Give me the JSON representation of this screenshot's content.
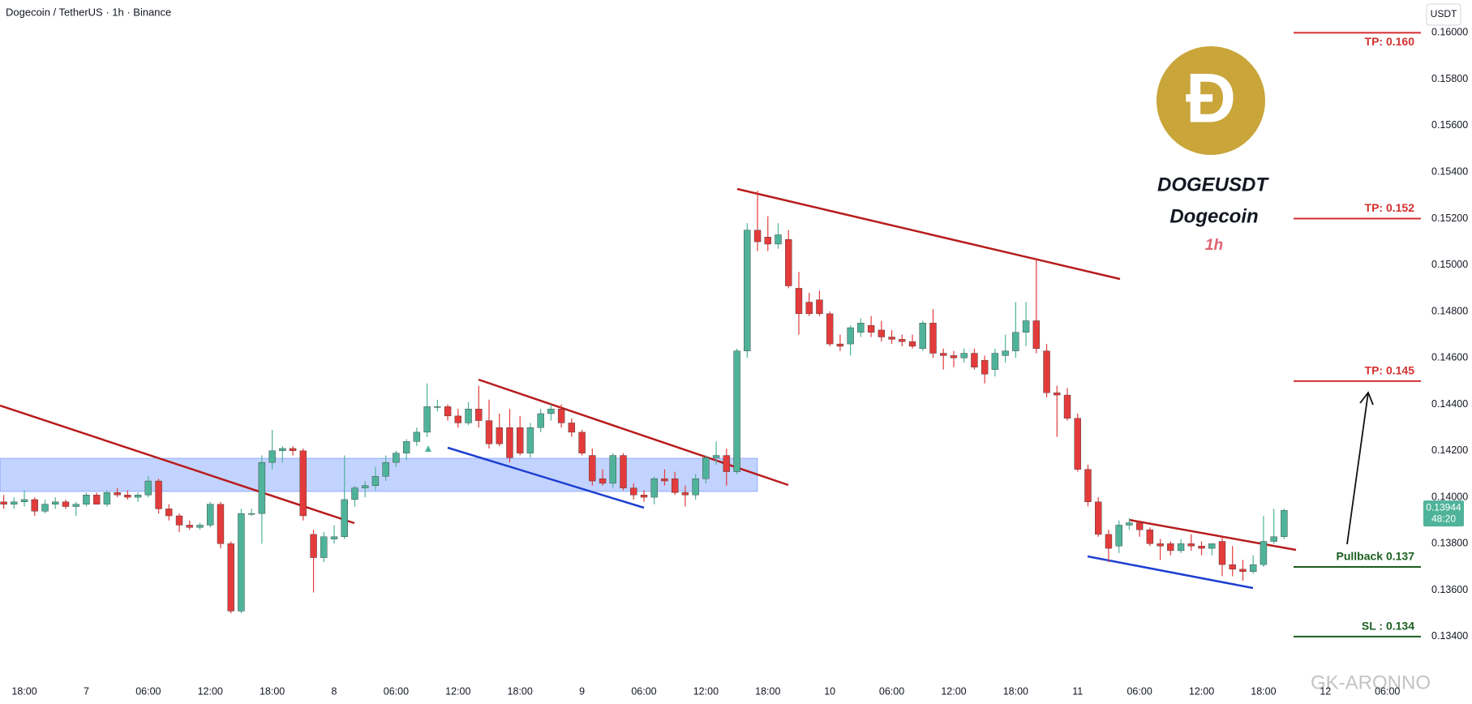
{
  "chart_data": {
    "type": "candlestick",
    "title": "Dogecoin / TetherUS · 1h · Binance",
    "currency": "USDT",
    "up_color": "#4fb39a",
    "down_color": "#e33b3b",
    "xlim": [
      -2.36,
      135.4
    ],
    "ylim": [
      0.13232,
      0.16141
    ],
    "yticks": [
      {
        "value": 0.134,
        "label": "0.13400"
      },
      {
        "value": 0.136,
        "label": "0.13600"
      },
      {
        "value": 0.138,
        "label": "0.13800"
      },
      {
        "value": 0.14,
        "label": "0.14000"
      },
      {
        "value": 0.142,
        "label": "0.14200"
      },
      {
        "value": 0.144,
        "label": "0.14400"
      },
      {
        "value": 0.146,
        "label": "0.14600"
      },
      {
        "value": 0.148,
        "label": "0.14800"
      },
      {
        "value": 0.15,
        "label": "0.15000"
      },
      {
        "value": 0.152,
        "label": "0.15200"
      },
      {
        "value": 0.154,
        "label": "0.15400"
      },
      {
        "value": 0.156,
        "label": "0.15600"
      },
      {
        "value": 0.158,
        "label": "0.15800"
      },
      {
        "value": 0.16,
        "label": "0.16000"
      }
    ],
    "xticks": [
      {
        "value": 0,
        "label": "18:00"
      },
      {
        "value": 6,
        "label": "7"
      },
      {
        "value": 12,
        "label": "06:00"
      },
      {
        "value": 18,
        "label": "12:00"
      },
      {
        "value": 24,
        "label": "18:00"
      },
      {
        "value": 30,
        "label": "8"
      },
      {
        "value": 36,
        "label": "06:00"
      },
      {
        "value": 42,
        "label": "12:00"
      },
      {
        "value": 48,
        "label": "18:00"
      },
      {
        "value": 54,
        "label": "9"
      },
      {
        "value": 60,
        "label": "06:00"
      },
      {
        "value": 66,
        "label": "12:00"
      },
      {
        "value": 72,
        "label": "18:00"
      },
      {
        "value": 78,
        "label": "10"
      },
      {
        "value": 84,
        "label": "06:00"
      },
      {
        "value": 90,
        "label": "12:00"
      },
      {
        "value": 96,
        "label": "18:00"
      },
      {
        "value": 102,
        "label": "11"
      },
      {
        "value": 108,
        "label": "06:00"
      },
      {
        "value": 114,
        "label": "12:00"
      },
      {
        "value": 120,
        "label": "18:00"
      },
      {
        "value": 126,
        "label": "12"
      },
      {
        "value": 132,
        "label": "06:00"
      }
    ],
    "x": [
      -2,
      -1,
      0,
      1,
      2,
      3,
      4,
      5,
      6,
      7,
      8,
      9,
      10,
      11,
      12,
      13,
      14,
      15,
      16,
      17,
      18,
      19,
      20,
      21,
      22,
      23,
      24,
      25,
      26,
      27,
      28,
      29,
      30,
      31,
      32,
      33,
      34,
      35,
      36,
      37,
      38,
      39,
      40,
      41,
      42,
      43,
      44,
      45,
      46,
      47,
      48,
      49,
      50,
      51,
      52,
      53,
      54,
      55,
      56,
      57,
      58,
      59,
      60,
      61,
      62,
      63,
      64,
      65,
      66,
      67,
      68,
      69,
      70,
      71,
      72,
      73,
      74,
      75,
      76,
      77,
      78,
      79,
      80,
      81,
      82,
      83,
      84,
      85,
      86,
      87,
      88,
      89,
      90,
      91,
      92,
      93,
      94,
      95,
      96,
      97,
      98,
      99,
      100,
      101,
      102,
      103,
      104,
      105,
      106,
      107,
      108,
      109,
      110,
      111,
      112,
      113,
      114,
      115,
      116,
      117,
      118,
      119,
      120,
      121,
      122
    ],
    "ohlc": [
      [
        0.1398,
        0.1401,
        0.1395,
        0.1397
      ],
      [
        0.1397,
        0.14,
        0.1395,
        0.1398
      ],
      [
        0.1398,
        0.1403,
        0.1396,
        0.1399
      ],
      [
        0.1399,
        0.14,
        0.1392,
        0.1394
      ],
      [
        0.1394,
        0.1399,
        0.1393,
        0.1397
      ],
      [
        0.1397,
        0.14,
        0.1395,
        0.1398
      ],
      [
        0.1398,
        0.1399,
        0.1395,
        0.1396
      ],
      [
        0.1396,
        0.1398,
        0.1392,
        0.1397
      ],
      [
        0.1397,
        0.1402,
        0.1396,
        0.1401
      ],
      [
        0.1401,
        0.1402,
        0.1397,
        0.1397
      ],
      [
        0.1397,
        0.1403,
        0.1396,
        0.1402
      ],
      [
        0.1402,
        0.1404,
        0.14,
        0.1401
      ],
      [
        0.1401,
        0.1403,
        0.1399,
        0.14
      ],
      [
        0.14,
        0.1402,
        0.1398,
        0.1401
      ],
      [
        0.1401,
        0.1409,
        0.14,
        0.1407
      ],
      [
        0.1407,
        0.1408,
        0.1393,
        0.1395
      ],
      [
        0.1395,
        0.1397,
        0.139,
        0.1392
      ],
      [
        0.1392,
        0.1393,
        0.1385,
        0.1388
      ],
      [
        0.1388,
        0.139,
        0.1386,
        0.1387
      ],
      [
        0.1387,
        0.1389,
        0.1386,
        0.1388
      ],
      [
        0.1388,
        0.1398,
        0.1387,
        0.1397
      ],
      [
        0.1397,
        0.1398,
        0.1378,
        0.138
      ],
      [
        0.138,
        0.1381,
        0.135,
        0.1351
      ],
      [
        0.1351,
        0.1395,
        0.135,
        0.1393
      ],
      [
        0.1393,
        0.1395,
        0.1392,
        0.1393
      ],
      [
        0.1393,
        0.1418,
        0.138,
        0.1415
      ],
      [
        0.1415,
        0.1429,
        0.1412,
        0.142
      ],
      [
        0.142,
        0.1422,
        0.1415,
        0.1421
      ],
      [
        0.1421,
        0.1422,
        0.1418,
        0.142
      ],
      [
        0.142,
        0.1421,
        0.139,
        0.1392
      ],
      [
        0.1384,
        0.1386,
        0.1359,
        0.1374
      ],
      [
        0.1374,
        0.1385,
        0.1372,
        0.1383
      ],
      [
        0.1382,
        0.1388,
        0.138,
        0.1383
      ],
      [
        0.1383,
        0.1418,
        0.1382,
        0.1399
      ],
      [
        0.1399,
        0.1405,
        0.1396,
        0.1404
      ],
      [
        0.1404,
        0.1407,
        0.14,
        0.1405
      ],
      [
        0.1405,
        0.1413,
        0.1403,
        0.1409
      ],
      [
        0.1409,
        0.1418,
        0.1407,
        0.1415
      ],
      [
        0.1415,
        0.142,
        0.1413,
        0.1419
      ],
      [
        0.1419,
        0.1425,
        0.1416,
        0.1424
      ],
      [
        0.1424,
        0.143,
        0.1422,
        0.1428
      ],
      [
        0.1428,
        0.1449,
        0.1426,
        0.1439
      ],
      [
        0.1439,
        0.1442,
        0.1437,
        0.1439
      ],
      [
        0.1439,
        0.144,
        0.1433,
        0.1435
      ],
      [
        0.1435,
        0.1438,
        0.143,
        0.1432
      ],
      [
        0.1432,
        0.1441,
        0.1431,
        0.1438
      ],
      [
        0.1438,
        0.1448,
        0.143,
        0.1433
      ],
      [
        0.1433,
        0.1442,
        0.1421,
        0.1423
      ],
      [
        0.143,
        0.1436,
        0.1422,
        0.1423
      ],
      [
        0.143,
        0.1438,
        0.1415,
        0.1417
      ],
      [
        0.143,
        0.1435,
        0.1418,
        0.1419
      ],
      [
        0.1419,
        0.1432,
        0.1417,
        0.143
      ],
      [
        0.143,
        0.1438,
        0.1428,
        0.1436
      ],
      [
        0.1436,
        0.144,
        0.1433,
        0.1438
      ],
      [
        0.1438,
        0.144,
        0.143,
        0.1432
      ],
      [
        0.1432,
        0.1434,
        0.1426,
        0.1428
      ],
      [
        0.1428,
        0.1429,
        0.1418,
        0.1419
      ],
      [
        0.1418,
        0.1421,
        0.1405,
        0.1407
      ],
      [
        0.1408,
        0.1412,
        0.1405,
        0.1406
      ],
      [
        0.1406,
        0.1419,
        0.1404,
        0.1418
      ],
      [
        0.1418,
        0.1419,
        0.1403,
        0.1404
      ],
      [
        0.1404,
        0.1406,
        0.1399,
        0.1401
      ],
      [
        0.1401,
        0.1403,
        0.1398,
        0.14
      ],
      [
        0.14,
        0.1409,
        0.1397,
        0.1408
      ],
      [
        0.1408,
        0.1412,
        0.1405,
        0.1407
      ],
      [
        0.1408,
        0.1411,
        0.1401,
        0.1402
      ],
      [
        0.1402,
        0.1405,
        0.1396,
        0.1401
      ],
      [
        0.1401,
        0.141,
        0.1399,
        0.1408
      ],
      [
        0.1408,
        0.1418,
        0.1406,
        0.1417
      ],
      [
        0.1417,
        0.1424,
        0.1414,
        0.1418
      ],
      [
        0.1418,
        0.1421,
        0.1405,
        0.1411
      ],
      [
        0.1411,
        0.1464,
        0.141,
        0.1463
      ],
      [
        0.1463,
        0.1518,
        0.146,
        0.1515
      ],
      [
        0.1515,
        0.1532,
        0.1506,
        0.151
      ],
      [
        0.1512,
        0.1521,
        0.1506,
        0.1509
      ],
      [
        0.1509,
        0.1518,
        0.1507,
        0.1513
      ],
      [
        0.1511,
        0.1515,
        0.149,
        0.1491
      ],
      [
        0.149,
        0.1497,
        0.147,
        0.1479
      ],
      [
        0.1484,
        0.1488,
        0.1478,
        0.1479
      ],
      [
        0.1485,
        0.1489,
        0.1478,
        0.1479
      ],
      [
        0.1479,
        0.148,
        0.1465,
        0.1466
      ],
      [
        0.1466,
        0.147,
        0.1463,
        0.1465
      ],
      [
        0.1466,
        0.1474,
        0.1461,
        0.1473
      ],
      [
        0.1471,
        0.1477,
        0.1469,
        0.1475
      ],
      [
        0.1474,
        0.1478,
        0.1469,
        0.1471
      ],
      [
        0.1472,
        0.1476,
        0.1467,
        0.1469
      ],
      [
        0.1469,
        0.1472,
        0.1466,
        0.1468
      ],
      [
        0.1468,
        0.147,
        0.1465,
        0.1467
      ],
      [
        0.1467,
        0.147,
        0.1464,
        0.1465
      ],
      [
        0.1464,
        0.1476,
        0.1463,
        0.1475
      ],
      [
        0.1475,
        0.1481,
        0.146,
        0.1462
      ],
      [
        0.1462,
        0.1464,
        0.1455,
        0.1461
      ],
      [
        0.1461,
        0.1463,
        0.1456,
        0.146
      ],
      [
        0.146,
        0.1464,
        0.1458,
        0.1462
      ],
      [
        0.1462,
        0.1464,
        0.1455,
        0.1456
      ],
      [
        0.1459,
        0.1461,
        0.1449,
        0.1453
      ],
      [
        0.1455,
        0.1464,
        0.1452,
        0.1462
      ],
      [
        0.1461,
        0.147,
        0.1458,
        0.1463
      ],
      [
        0.1463,
        0.1484,
        0.146,
        0.1471
      ],
      [
        0.1471,
        0.1484,
        0.1465,
        0.1476
      ],
      [
        0.1476,
        0.1503,
        0.1462,
        0.1464
      ],
      [
        0.1463,
        0.1466,
        0.1443,
        0.1445
      ],
      [
        0.1445,
        0.1448,
        0.1426,
        0.1444
      ],
      [
        0.1444,
        0.1447,
        0.1433,
        0.1434
      ],
      [
        0.1434,
        0.1436,
        0.1411,
        0.1412
      ],
      [
        0.1412,
        0.1414,
        0.1396,
        0.1398
      ],
      [
        0.1398,
        0.14,
        0.1383,
        0.1384
      ],
      [
        0.1384,
        0.1386,
        0.1372,
        0.1378
      ],
      [
        0.1379,
        0.139,
        0.1376,
        0.1388
      ],
      [
        0.1388,
        0.1391,
        0.1386,
        0.1389
      ],
      [
        0.1389,
        0.139,
        0.1383,
        0.1386
      ],
      [
        0.1386,
        0.1387,
        0.1379,
        0.138
      ],
      [
        0.138,
        0.1382,
        0.1373,
        0.1379
      ],
      [
        0.138,
        0.1381,
        0.1375,
        0.1377
      ],
      [
        0.1377,
        0.1382,
        0.1376,
        0.138
      ],
      [
        0.138,
        0.1384,
        0.1377,
        0.1379
      ],
      [
        0.1379,
        0.1381,
        0.1375,
        0.1378
      ],
      [
        0.1378,
        0.138,
        0.1375,
        0.138
      ],
      [
        0.1381,
        0.1383,
        0.1366,
        0.1371
      ],
      [
        0.1371,
        0.1379,
        0.1366,
        0.1369
      ],
      [
        0.1369,
        0.1373,
        0.1364,
        0.1368
      ],
      [
        0.1368,
        0.1375,
        0.1367,
        0.1371
      ],
      [
        0.1371,
        0.1392,
        0.137,
        0.1381
      ],
      [
        0.1381,
        0.1395,
        0.138,
        0.1383
      ],
      [
        0.1383,
        0.1395,
        0.1382,
        0.13944
      ]
    ],
    "levels": [
      {
        "label": "TP: 0.160",
        "value": 0.16,
        "color": "#d32f2f"
      },
      {
        "label": "TP: 0.152",
        "value": 0.152,
        "color": "#d32f2f"
      },
      {
        "label": "TP: 0.145",
        "value": 0.145,
        "color": "#d32f2f"
      },
      {
        "label": "Pullback 0.137",
        "value": 0.137,
        "color": "#1b5e20"
      },
      {
        "label": "SL : 0.134",
        "value": 0.134,
        "color": "#1b5e20"
      }
    ],
    "last_price": 0.13944,
    "countdown": "48:20",
    "logo": {
      "symbol": "Ð",
      "ticker": "DOGEUSDT",
      "name": "Dogecoin",
      "interval": "1h"
    },
    "watermark": "GK-ARONNO"
  }
}
